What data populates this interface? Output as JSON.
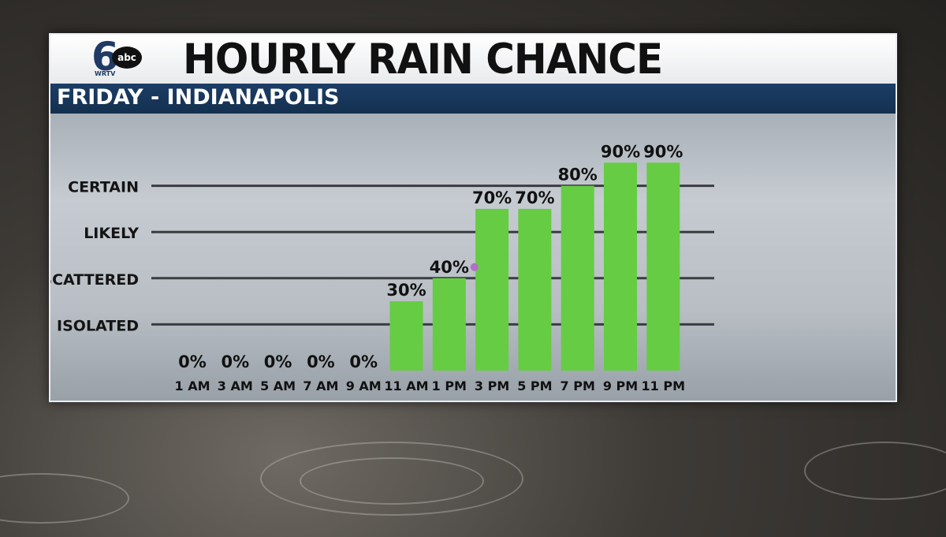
{
  "title": "HOURLY RAIN CHANCE",
  "subtitle": "FRIDAY - INDIANAPOLIS",
  "logo": {
    "channel": "6",
    "network": "abc",
    "callsign": "WRTV"
  },
  "colors": {
    "bar": "#66cc44",
    "header_bg": "#1c3d66",
    "title_bg": "#ffffff",
    "marker": "#b070c8"
  },
  "chart_data": {
    "type": "bar",
    "title": "HOURLY RAIN CHANCE",
    "subtitle": "FRIDAY - INDIANAPOLIS",
    "xlabel": "",
    "ylabel": "",
    "ylim": [
      0,
      100
    ],
    "categories": [
      "1 AM",
      "3 AM",
      "5 AM",
      "7 AM",
      "9 AM",
      "11 AM",
      "1 PM",
      "3 PM",
      "5 PM",
      "7 PM",
      "9 PM",
      "11 PM"
    ],
    "values": [
      0,
      0,
      0,
      0,
      0,
      30,
      40,
      70,
      70,
      80,
      90,
      90
    ],
    "value_labels": [
      "0%",
      "0%",
      "0%",
      "0%",
      "0%",
      "30%",
      "40%",
      "70%",
      "70%",
      "80%",
      "90%",
      "90%"
    ],
    "reference_lines": [
      {
        "label": "CERTAIN",
        "value": 80
      },
      {
        "label": "LIKELY",
        "value": 60
      },
      {
        "label": "SCATTERED",
        "value": 40
      },
      {
        "label": "ISOLATED",
        "value": 20
      }
    ],
    "grid": false,
    "legend": "none"
  }
}
